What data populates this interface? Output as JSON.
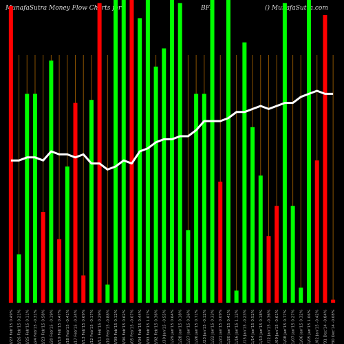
{
  "header": {
    "left": "MunafaSutra  Money Flow  Charts for",
    "symbol": "BFI",
    "right": "() MunafaSutra.com"
  },
  "chart_data": {
    "type": "bar",
    "title": "MunafaSutra Money Flow Charts for BFI",
    "categories": [
      "Fri 27 Feb 2015",
      "Thu 26 Feb 2015",
      "Wed 25 Feb 2015",
      "Tue 24 Feb 2015",
      "Mon 23 Feb 2015",
      "Fri 20 Feb 2015",
      "Thu 19 Feb 2015",
      "Wed 18 Feb 2015",
      "Tue 17 Feb 2015",
      "Fri 13 Feb 2015",
      "Thu 12 Feb 2015",
      "Wed 11 Feb 2015",
      "Tue 10 Feb 2015",
      "Mon 09 Feb 2015",
      "Fri 06 Feb 2015",
      "Thu 05 Feb 2015",
      "Wed 04 Feb 2015",
      "Tue 03 Feb 2015",
      "Mon 02 Feb 2015",
      "Fri 30 Jan 2015",
      "Thu 29 Jan 2015",
      "Wed 28 Jan 2015",
      "Tue 27 Jan 2015",
      "Mon 26 Jan 2015",
      "Fri 23 Jan 2015",
      "Thu 22 Jan 2015",
      "Wed 21 Jan 2015",
      "Tue 20 Jan 2015",
      "Fri 16 Jan 2015",
      "Thu 15 Jan 2015",
      "Wed 14 Jan 2015",
      "Tue 13 Jan 2015",
      "Mon 12 Jan 2015",
      "Fri 09 Jan 2015",
      "Thu 08 Jan 2015",
      "Wed 07 Jan 2015",
      "Tue 06 Jan 2015",
      "Mon 05 Jan 2015",
      "Fri 02 Jan 2015",
      "Wed 31 Dec 2014",
      "Tue 30 Dec 2014"
    ],
    "xlabels": [
      "2/27 Feb'15 0.49%",
      "2/26 Feb'15 0.21%",
      "2/25 Feb'15 0.11%",
      "2/24 Feb'15 -0.31%",
      "2/23 Feb'15 0.58%",
      "2/20 Feb'15 -0.19%",
      "2/19 Feb'15 0.47%",
      "2/18 Feb'15 -0.41%",
      "2/17 Feb'15 -0.34%",
      "2/13 Feb'15 0.69%",
      "2/12 Feb'15 -0.17%",
      "2/11 Feb'15 0.29%",
      "2/10 Feb'15 -0.88%",
      "2/09 Feb'15 0.12%",
      "2/06 Feb'15 0.62%",
      "2/05 Feb'15 -0.07%",
      "2/04 Feb'15 0.44%",
      "2/03 Feb'15 1.07%",
      "2/02 Feb'15 0.36%",
      "1/30 Jan'15 -0.55%",
      "1/29 Jan'15 0.64%",
      "1/28 Jan'15 0.18%",
      "1/27 Jan'15 0.26%",
      "1/26 Jan'15 0.71%",
      "1/23 Jan'15 -0.12%",
      "1/22 Jan'15 0.33%",
      "1/21 Jan'15 0.09%",
      "1/20 Jan'15 0.41%",
      "1/16 Jan'15 1.12%",
      "1/15 Jan'15 -0.23%",
      "1/14 Jan'15 0.52%",
      "1/13 Jan'15 0.18%",
      "1/12 Jan'15 -0.36%",
      "1/09 Jan'15 -0.61%",
      "1/08 Jan'15 0.77%",
      "1/07 Jan'15 0.27%",
      "1/06 Jan'15 0.32%",
      "1/05 Jan'15 1.06%",
      "1/02 Jan'15 -0.42%",
      "12/31 Dec'14 -0.84%",
      "12/30 Dec'14 -0.08%"
    ],
    "series": [
      {
        "colors": [
          "red",
          "green",
          "green",
          "green",
          "red",
          "green",
          "red",
          "green",
          "red",
          "red",
          "green",
          "red",
          "green",
          "green",
          "green",
          "red",
          "green",
          "green",
          "green",
          "green",
          "green",
          "green",
          "green",
          "green",
          "green",
          "green",
          "red",
          "green",
          "green",
          "green",
          "green",
          "green",
          "red",
          "red",
          "green",
          "green",
          "green",
          "green",
          "red",
          "red",
          "red"
        ],
        "values": [
          98,
          16,
          69,
          69,
          30,
          80,
          21,
          45,
          66,
          9,
          67,
          99,
          6,
          100,
          100,
          100,
          94,
          100,
          78,
          84,
          100,
          99,
          24,
          69,
          69,
          100,
          40,
          100,
          4,
          86,
          58,
          42,
          22,
          32,
          99,
          32,
          5,
          100,
          47,
          95,
          1
        ]
      },
      {
        "line": [
          47,
          47,
          48,
          48,
          47,
          50,
          49,
          49,
          48,
          49,
          46,
          46,
          44,
          45,
          47,
          46,
          50,
          51,
          53,
          54,
          54,
          55,
          55,
          57,
          60,
          60,
          60,
          61,
          63,
          63,
          64,
          65,
          64,
          65,
          66,
          66,
          68,
          69,
          70,
          69,
          69
        ]
      }
    ],
    "ylim": [
      0,
      100
    ],
    "colors": {
      "background": "#000000",
      "green": "#00ff00",
      "red": "#ff0000",
      "line": "#ffffff",
      "grid": "#8a5200",
      "header_text": "#dddddd",
      "label_text": "#bbbbbb"
    }
  }
}
